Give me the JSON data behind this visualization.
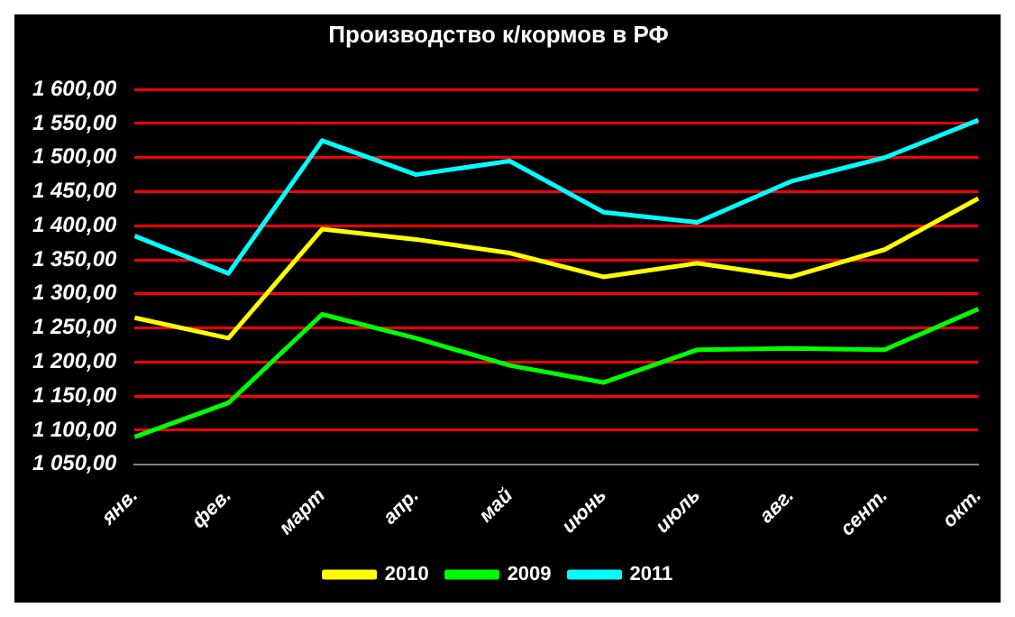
{
  "chart_data": {
    "type": "line",
    "title": "Производство к/кормов в РФ",
    "categories": [
      "янв.",
      "фев.",
      "март",
      "апр.",
      "май",
      "июнь",
      "июль",
      "авг.",
      "сент.",
      "окт."
    ],
    "series": [
      {
        "name": "2010",
        "color": "#ffff00",
        "values": [
          1265,
          1235,
          1395,
          1380,
          1360,
          1325,
          1345,
          1325,
          1365,
          1440
        ]
      },
      {
        "name": "2009",
        "color": "#00ff00",
        "values": [
          1090,
          1140,
          1270,
          1235,
          1195,
          1170,
          1218,
          1220,
          1218,
          1278
        ]
      },
      {
        "name": "2011",
        "color": "#00ffff",
        "values": [
          1385,
          1330,
          1525,
          1475,
          1495,
          1420,
          1405,
          1465,
          1500,
          1555
        ]
      }
    ],
    "ylim": [
      1050,
      1600
    ],
    "yticks": [
      {
        "value": 1050,
        "label": "1 050,00"
      },
      {
        "value": 1100,
        "label": "1 100,00"
      },
      {
        "value": 1150,
        "label": "1 150,00"
      },
      {
        "value": 1200,
        "label": "1 200,00"
      },
      {
        "value": 1250,
        "label": "1 250,00"
      },
      {
        "value": 1300,
        "label": "1 300,00"
      },
      {
        "value": 1350,
        "label": "1 350,00"
      },
      {
        "value": 1400,
        "label": "1 400,00"
      },
      {
        "value": 1450,
        "label": "1 450,00"
      },
      {
        "value": 1500,
        "label": "1 500,00"
      },
      {
        "value": 1550,
        "label": "1 550,00"
      },
      {
        "value": 1600,
        "label": "1 600,00"
      }
    ],
    "grid": "y",
    "legend": "bottom",
    "marker": "none"
  }
}
